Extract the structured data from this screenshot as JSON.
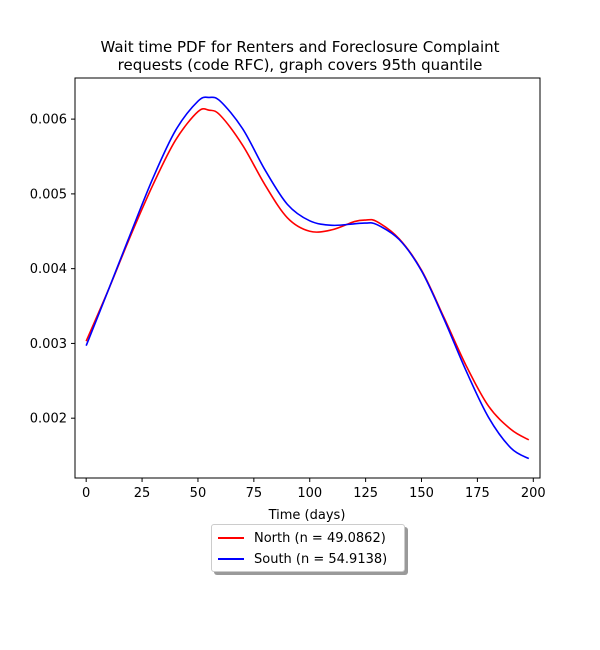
{
  "chart_data": {
    "type": "line",
    "title_lines": [
      "Wait time PDF for Renters and Foreclosure Complaint",
      "requests (code RFC), graph covers 95th quantile"
    ],
    "xlabel": "Time (days)",
    "ylabel": "",
    "xlim": [
      -5,
      203
    ],
    "ylim": [
      0.0012,
      0.00655
    ],
    "x_ticks": [
      0,
      25,
      50,
      75,
      100,
      125,
      150,
      175,
      200
    ],
    "y_ticks": [
      0.002,
      0.003,
      0.004,
      0.005,
      0.006
    ],
    "y_tick_labels": [
      "0.002",
      "0.003",
      "0.004",
      "0.005",
      "0.006"
    ],
    "grid": false,
    "legend_position": "bottom-center",
    "series": [
      {
        "name": "North (n = 49.0862)",
        "color": "#ff0000",
        "x": [
          0,
          10,
          20,
          30,
          40,
          50,
          55,
          60,
          70,
          80,
          90,
          100,
          110,
          120,
          125,
          130,
          140,
          150,
          160,
          170,
          180,
          190,
          198
        ],
        "y": [
          0.00303,
          0.00372,
          0.00445,
          0.00513,
          0.00572,
          0.0061,
          0.00612,
          0.00605,
          0.00565,
          0.00512,
          0.00468,
          0.0045,
          0.00452,
          0.00463,
          0.00465,
          0.00463,
          0.0044,
          0.00398,
          0.00335,
          0.0027,
          0.00216,
          0.00185,
          0.00171
        ]
      },
      {
        "name": "South (n = 54.9138)",
        "color": "#0000ff",
        "x": [
          0,
          10,
          20,
          30,
          40,
          50,
          55,
          60,
          70,
          80,
          90,
          100,
          110,
          120,
          125,
          130,
          140,
          150,
          160,
          170,
          180,
          190,
          198
        ],
        "y": [
          0.00297,
          0.00372,
          0.00448,
          0.00522,
          0.00585,
          0.00624,
          0.00629,
          0.00624,
          0.00587,
          0.00532,
          0.00486,
          0.00464,
          0.00458,
          0.0046,
          0.00461,
          0.00459,
          0.00439,
          0.00397,
          0.00333,
          0.00263,
          0.00201,
          0.0016,
          0.00146
        ]
      }
    ]
  }
}
